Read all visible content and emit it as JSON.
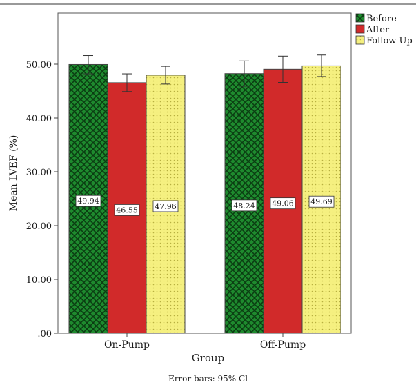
{
  "chart_data": {
    "type": "bar",
    "xlabel": "Group",
    "ylabel": "Mean LVEF (%)",
    "footnote": "Error bars: 95% Cl",
    "categories": [
      "On-Pump",
      "Off-Pump"
    ],
    "ylim": [
      0,
      55
    ],
    "yticks": [
      0,
      10,
      20,
      30,
      40,
      50
    ],
    "ytick_labels": [
      ".00",
      "10.00",
      "20.00",
      "30.00",
      "40.00",
      "50.00"
    ],
    "grid": false,
    "legend_position": "top-right",
    "series": [
      {
        "name": "Before",
        "color": "#1e8a2e",
        "pattern": "cross-hatch",
        "values": [
          49.94,
          48.24
        ],
        "ci_low": [
          48.2,
          45.9
        ],
        "ci_high": [
          51.6,
          50.6
        ],
        "labels": [
          "49.94",
          "48.24"
        ]
      },
      {
        "name": "After",
        "color": "#d12a2a",
        "pattern": "solid",
        "values": [
          46.55,
          49.06
        ],
        "ci_low": [
          44.9,
          46.6
        ],
        "ci_high": [
          48.2,
          51.5
        ],
        "labels": [
          "46.55",
          "49.06"
        ]
      },
      {
        "name": "Follow Up",
        "color": "#f5f080",
        "pattern": "dotted",
        "values": [
          47.96,
          49.69
        ],
        "ci_low": [
          46.3,
          47.7
        ],
        "ci_high": [
          49.6,
          51.7
        ],
        "labels": [
          "47.96",
          "49.69"
        ]
      }
    ]
  }
}
